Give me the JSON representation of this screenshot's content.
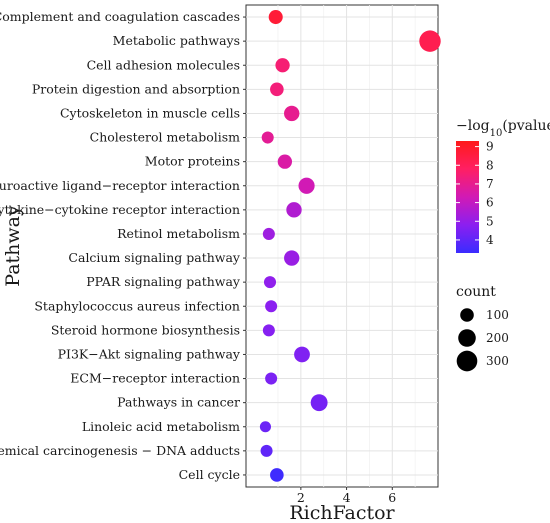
{
  "chart_data": {
    "type": "scatter",
    "xlabel": "RichFactor",
    "ylabel": "Pathway",
    "xlim": [
      -0.4,
      8.0
    ],
    "xticks": [
      2,
      4,
      6
    ],
    "grid": true,
    "color_legend": {
      "title_prefix": "−log",
      "title_sub": "10",
      "title_suffix": "(pvalue)",
      "ticks": [
        4,
        5,
        6,
        7,
        8,
        9
      ],
      "range": [
        3.3,
        9.3
      ],
      "colors": [
        "#3a2cff",
        "#8b1ff0",
        "#d11ab5",
        "#ff1f63",
        "#ff1a1a"
      ]
    },
    "size_legend": {
      "title": "count",
      "values": [
        100,
        200,
        300
      ]
    },
    "points": [
      {
        "pathway": "Complement and coagulation cascades",
        "x": 0.9,
        "pvalue_log": 8.7,
        "count": 110
      },
      {
        "pathway": "Metabolic pathways",
        "x": 7.65,
        "pvalue_log": 8.2,
        "count": 330
      },
      {
        "pathway": "Cell adhesion molecules",
        "x": 1.2,
        "pvalue_log": 7.5,
        "count": 115
      },
      {
        "pathway": "Protein digestion and absorption",
        "x": 0.95,
        "pvalue_log": 7.4,
        "count": 100
      },
      {
        "pathway": "Cytoskeleton in muscle cells",
        "x": 1.6,
        "pvalue_log": 7.0,
        "count": 140
      },
      {
        "pathway": "Cholesterol metabolism",
        "x": 0.55,
        "pvalue_log": 6.9,
        "count": 70
      },
      {
        "pathway": "Motor proteins",
        "x": 1.3,
        "pvalue_log": 6.6,
        "count": 115
      },
      {
        "pathway": "Neuroactive ligand−receptor interaction",
        "x": 2.25,
        "pvalue_log": 6.3,
        "count": 160
      },
      {
        "pathway": "Cytokine−cytokine receptor interaction",
        "x": 1.7,
        "pvalue_log": 5.6,
        "count": 140
      },
      {
        "pathway": "Retinol metabolism",
        "x": 0.6,
        "pvalue_log": 5.2,
        "count": 70
      },
      {
        "pathway": "Calcium signaling pathway",
        "x": 1.6,
        "pvalue_log": 5.1,
        "count": 140
      },
      {
        "pathway": "PPAR signaling pathway",
        "x": 0.65,
        "pvalue_log": 4.9,
        "count": 70
      },
      {
        "pathway": "Staphylococcus aureus infection",
        "x": 0.7,
        "pvalue_log": 4.8,
        "count": 70
      },
      {
        "pathway": "Steroid hormone biosynthesis",
        "x": 0.6,
        "pvalue_log": 4.7,
        "count": 70
      },
      {
        "pathway": "PI3K−Akt signaling pathway",
        "x": 2.05,
        "pvalue_log": 4.6,
        "count": 150
      },
      {
        "pathway": "ECM−receptor interaction",
        "x": 0.7,
        "pvalue_log": 4.5,
        "count": 70
      },
      {
        "pathway": "Pathways in cancer",
        "x": 2.8,
        "pvalue_log": 4.4,
        "count": 180
      },
      {
        "pathway": "Linoleic acid metabolism",
        "x": 0.45,
        "pvalue_log": 4.2,
        "count": 55
      },
      {
        "pathway": "Chemical carcinogenesis − DNA adducts",
        "x": 0.5,
        "pvalue_log": 4.0,
        "count": 70
      },
      {
        "pathway": "Cell cycle",
        "x": 0.95,
        "pvalue_log": 3.4,
        "count": 100
      }
    ]
  }
}
